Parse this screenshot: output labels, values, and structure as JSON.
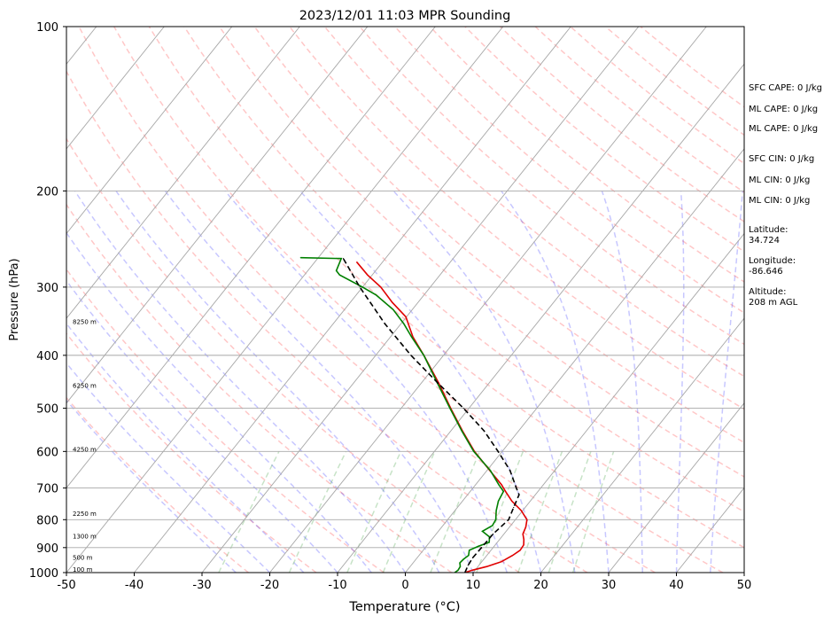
{
  "chart_data": {
    "type": "line",
    "title": "2023/12/01 11:03 MPR Sounding",
    "xlabel": "Temperature (°C)",
    "ylabel": "Pressure (hPa)",
    "xlim": [
      -50,
      50
    ],
    "ylim": [
      1000,
      100
    ],
    "y_scale": "log",
    "grid": true,
    "x_ticks": [
      -50,
      -40,
      -30,
      -20,
      -10,
      0,
      10,
      20,
      30,
      40,
      50
    ],
    "y_ticks": [
      100,
      200,
      300,
      400,
      500,
      600,
      700,
      800,
      900,
      1000
    ],
    "height_labels": [
      {
        "text": "8250 m",
        "p": 348
      },
      {
        "text": "6250 m",
        "p": 455
      },
      {
        "text": "4250 m",
        "p": 596
      },
      {
        "text": "2250 m",
        "p": 781
      },
      {
        "text": "1300 m",
        "p": 860
      },
      {
        "text": "500 m",
        "p": 940
      },
      {
        "text": "100 m",
        "p": 988
      }
    ],
    "series": [
      {
        "role": "temperature",
        "color": "#e00000",
        "points": [
          [
            1000,
            8.8
          ],
          [
            990,
            9.6
          ],
          [
            975,
            11.3
          ],
          [
            955,
            12.9
          ],
          [
            930,
            13.8
          ],
          [
            910,
            14.3
          ],
          [
            890,
            14.2
          ],
          [
            870,
            13.6
          ],
          [
            850,
            12.8
          ],
          [
            825,
            12.4
          ],
          [
            800,
            11.7
          ],
          [
            770,
            9.8
          ],
          [
            740,
            7.3
          ],
          [
            710,
            5.2
          ],
          [
            690,
            3.8
          ],
          [
            650,
            0.4
          ],
          [
            600,
            -4.1
          ],
          [
            550,
            -8.3
          ],
          [
            500,
            -12.7
          ],
          [
            450,
            -17.4
          ],
          [
            400,
            -22.9
          ],
          [
            370,
            -26.7
          ],
          [
            340,
            -30.1
          ],
          [
            320,
            -33.8
          ],
          [
            300,
            -37.3
          ],
          [
            285,
            -40.7
          ],
          [
            270,
            -43.8
          ]
        ]
      },
      {
        "role": "dewpoint",
        "color": "#008000",
        "points": [
          [
            1000,
            7.3
          ],
          [
            990,
            7.5
          ],
          [
            975,
            7.4
          ],
          [
            960,
            6.9
          ],
          [
            945,
            7.0
          ],
          [
            930,
            7.3
          ],
          [
            910,
            6.8
          ],
          [
            895,
            7.7
          ],
          [
            880,
            8.8
          ],
          [
            860,
            8.2
          ],
          [
            840,
            6.5
          ],
          [
            820,
            7.3
          ],
          [
            800,
            7.1
          ],
          [
            770,
            6.1
          ],
          [
            740,
            5.3
          ],
          [
            710,
            4.9
          ],
          [
            690,
            3.4
          ],
          [
            650,
            0.5
          ],
          [
            600,
            -4.2
          ],
          [
            550,
            -8.4
          ],
          [
            500,
            -12.8
          ],
          [
            450,
            -17.6
          ],
          [
            400,
            -22.9
          ],
          [
            370,
            -26.9
          ],
          [
            350,
            -29.6
          ],
          [
            330,
            -32.8
          ],
          [
            310,
            -37.1
          ],
          [
            300,
            -40.0
          ],
          [
            285,
            -44.8
          ],
          [
            280,
            -45.8
          ],
          [
            266,
            -46.5
          ],
          [
            265,
            -52.6
          ]
        ]
      },
      {
        "role": "parcel",
        "color": "#000000",
        "style": "dashed",
        "points": [
          [
            1000,
            8.8
          ],
          [
            970,
            8.4
          ],
          [
            940,
            8.2
          ],
          [
            900,
            8.3
          ],
          [
            850,
            8.4
          ],
          [
            800,
            9.0
          ],
          [
            760,
            8.3
          ],
          [
            720,
            7.6
          ],
          [
            700,
            6.4
          ],
          [
            650,
            3.4
          ],
          [
            600,
            -0.6
          ],
          [
            550,
            -5.1
          ],
          [
            500,
            -10.8
          ],
          [
            450,
            -17.5
          ],
          [
            400,
            -24.8
          ],
          [
            350,
            -32.4
          ],
          [
            300,
            -40.4
          ],
          [
            266,
            -46.2
          ]
        ]
      }
    ],
    "indices": [
      "SFC CAPE: 0 J/kg",
      "ML CAPE: 0 J/kg",
      "ML CAPE: 0 J/kg",
      "SFC CIN: 0 J/kg",
      "ML CIN: 0 J/kg",
      "ML CIN: 0 J/kg"
    ],
    "location": {
      "latitude_label": "Latitude:",
      "latitude": "34.724",
      "longitude_label": "Longitude:",
      "longitude": "-86.646",
      "altitude_label": "Altitude:",
      "altitude": "208 m AGL"
    }
  }
}
